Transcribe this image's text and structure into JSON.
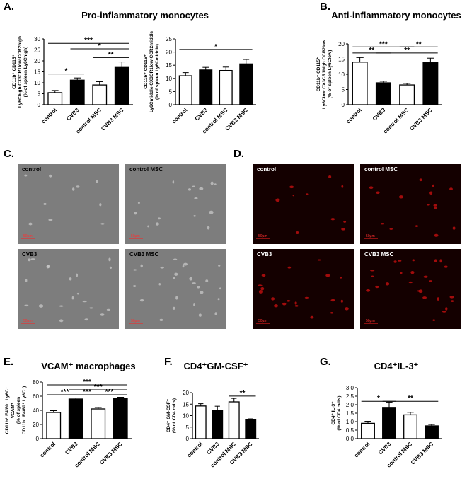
{
  "chart_data": [
    {
      "type": "bar",
      "letter": "A.",
      "title": "Pro-inflammatory monocytes",
      "ylabel": [
        "CD11b⁺ CD115⁺",
        "Ly6Chigh CX3CR1low CCR2high",
        "(% of spleen Ly6Chigh)"
      ],
      "categories": [
        "control",
        "CVB3",
        "control MSC",
        "CVB3 MSC"
      ],
      "values": [
        5.5,
        11.2,
        9,
        17
      ],
      "errors": [
        1,
        1,
        1.5,
        2.5
      ],
      "colors": [
        "#ffffff",
        "#000000",
        "#ffffff",
        "#000000"
      ],
      "ylim": [
        0,
        30
      ],
      "yticks": [
        0,
        5,
        10,
        15,
        20,
        25,
        30
      ],
      "significance": [
        {
          "from": 0,
          "to": 1,
          "y": 14,
          "label": "*"
        },
        {
          "from": 0,
          "to": 3,
          "y": 28,
          "label": "***"
        },
        {
          "from": 1,
          "to": 3,
          "y": 25.5,
          "label": "*"
        },
        {
          "from": 2,
          "to": 3,
          "y": 21.5,
          "label": "**"
        }
      ]
    },
    {
      "type": "bar",
      "ylabel": [
        "CD11b⁺ CD115⁺",
        "Ly6Cmiddle CX3CR1low CCR2middle",
        "(% of spleen Ly6Cmiddle)"
      ],
      "categories": [
        "control",
        "CVB3",
        "control MSC",
        "CVB3 MSC"
      ],
      "values": [
        11,
        13.2,
        13,
        15.5
      ],
      "errors": [
        1.2,
        1,
        1.3,
        1.7
      ],
      "colors": [
        "#ffffff",
        "#000000",
        "#ffffff",
        "#000000"
      ],
      "ylim": [
        0,
        25
      ],
      "yticks": [
        0,
        5,
        10,
        15,
        20,
        25
      ],
      "significance": [
        {
          "from": 0,
          "to": 3,
          "y": 21,
          "label": "*"
        }
      ]
    },
    {
      "type": "bar",
      "letter": "B.",
      "title": "Anti-inflammatory monocytes",
      "ylabel": [
        "CD11b⁺ CD115⁺",
        "Ly6Clow CX3CR1high CCR2low",
        "(% of spleen Ly6Clow)"
      ],
      "categories": [
        "control",
        "CVB3",
        "control MSC",
        "CVB3 MSC"
      ],
      "values": [
        14,
        7.2,
        6.5,
        13.8
      ],
      "errors": [
        1.5,
        0.5,
        0.5,
        1.5
      ],
      "colors": [
        "#ffffff",
        "#000000",
        "#ffffff",
        "#000000"
      ],
      "ylim": [
        0,
        20
      ],
      "yticks": [
        0,
        5,
        10,
        15,
        20
      ],
      "significance": [
        {
          "from": 0,
          "to": 1,
          "y": 17,
          "label": "**"
        },
        {
          "from": 1,
          "to": 3,
          "y": 17,
          "label": "**"
        },
        {
          "from": 0,
          "to": 2,
          "y": 19,
          "label": "***"
        },
        {
          "from": 2,
          "to": 3,
          "y": 19,
          "label": "**"
        }
      ]
    },
    {
      "type": "bar",
      "letter": "E.",
      "title": "VCAM⁺ macrophages",
      "ylabel": [
        "CD11b⁺ F4/80⁺ Ly6C⁻",
        "VCAM⁺",
        "(% of spleen",
        "CD11b⁺ F4/80⁺ Ly6C⁻)"
      ],
      "categories": [
        "control",
        "CVB3",
        "control MSC",
        "CVB3 MSC"
      ],
      "values": [
        37,
        56,
        42,
        57
      ],
      "errors": [
        2.5,
        1.5,
        2,
        1.5
      ],
      "colors": [
        "#ffffff",
        "#000000",
        "#ffffff",
        "#000000"
      ],
      "ylim": [
        0,
        80
      ],
      "yticks": [
        0,
        20,
        40,
        60,
        80
      ],
      "significance": [
        {
          "from": 0,
          "to": 1,
          "y": 62,
          "label": "***"
        },
        {
          "from": 1,
          "to": 2,
          "y": 62,
          "label": "***"
        },
        {
          "from": 2,
          "to": 3,
          "y": 62,
          "label": "***"
        },
        {
          "from": 1,
          "to": 3,
          "y": 69,
          "label": "***"
        },
        {
          "from": 0,
          "to": 3,
          "y": 76,
          "label": "***"
        }
      ]
    },
    {
      "type": "bar",
      "letter": "F.",
      "title": "CD4⁺GM-CSF⁺",
      "ylabel": [
        "CD4⁺ GM-CSF⁺",
        "(% of CD4 cells)"
      ],
      "categories": [
        "control",
        "CVB3",
        "control MSC",
        "CVB3 MSC"
      ],
      "values": [
        14.2,
        12.3,
        16,
        8.3
      ],
      "errors": [
        1,
        1.8,
        1.5,
        0.3
      ],
      "colors": [
        "#ffffff",
        "#000000",
        "#ffffff",
        "#000000"
      ],
      "ylim": [
        0,
        20
      ],
      "yticks": [
        0,
        5,
        10,
        15,
        20
      ],
      "significance": [
        {
          "from": 2,
          "to": 3,
          "y": 18.5,
          "label": "**"
        }
      ]
    },
    {
      "type": "bar",
      "letter": "G.",
      "title": "CD4⁺IL-3⁺",
      "ylabel": [
        "CD4⁺ IL-3⁺",
        "(% of CD4 cells)"
      ],
      "categories": [
        "control",
        "CVB3",
        "control MSC",
        "CVB3 MSC"
      ],
      "values": [
        0.9,
        1.8,
        1.4,
        0.75
      ],
      "errors": [
        0.12,
        0.35,
        0.15,
        0.08
      ],
      "colors": [
        "#ffffff",
        "#000000",
        "#ffffff",
        "#000000"
      ],
      "ylim": [
        0,
        3
      ],
      "yticks": [
        {
          "value": 0,
          "label": "0.0"
        },
        0.5,
        {
          "value": 1,
          "label": "1.0"
        },
        1.5,
        {
          "value": 2,
          "label": "2.0"
        },
        2.5,
        {
          "value": 3,
          "label": "3.0"
        }
      ],
      "significance": [
        {
          "from": 0,
          "to": 1,
          "y": 2.2,
          "label": "*"
        },
        {
          "from": 1,
          "to": 3,
          "y": 2.2,
          "label": "**"
        }
      ]
    }
  ],
  "image_panels": [
    {
      "letter": "C.",
      "background": "#7d7d7d",
      "spot": "#c8c8c8",
      "images": [
        {
          "label": "control",
          "scale": "50µm"
        },
        {
          "label": "control MSC",
          "scale": "50µm"
        },
        {
          "label": "CVB3",
          "scale": "50µm"
        },
        {
          "label": "CVB3 MSC",
          "scale": "50µm"
        }
      ]
    },
    {
      "letter": "D.",
      "background": "#140000",
      "spot": "#d01010",
      "images": [
        {
          "label": "control",
          "scale": "50µm"
        },
        {
          "label": "control MSC",
          "scale": "50µm"
        },
        {
          "label": "CVB3",
          "scale": "50µm"
        },
        {
          "label": "CVB3 MSC",
          "scale": "50µm"
        }
      ]
    }
  ]
}
